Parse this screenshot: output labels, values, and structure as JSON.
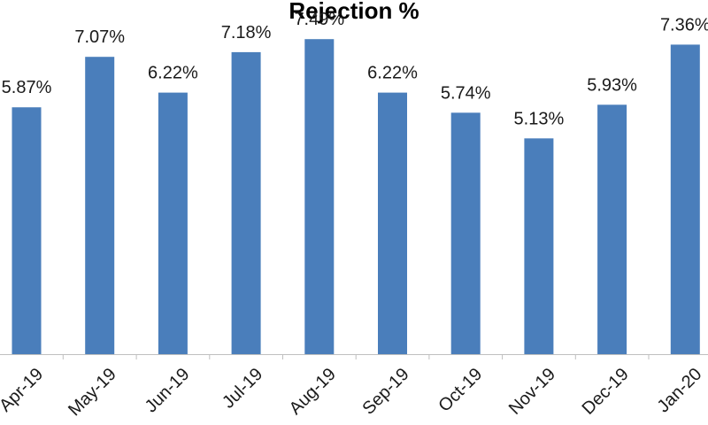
{
  "chart_data": {
    "type": "bar",
    "title": "Rejection %",
    "categories": [
      "Apr-19",
      "May-19",
      "Jun-19",
      "Jul-19",
      "Aug-19",
      "Sep-19",
      "Oct-19",
      "Nov-19",
      "Dec-19",
      "Jan-20"
    ],
    "values": [
      5.87,
      7.07,
      6.22,
      7.18,
      7.49,
      6.22,
      5.74,
      5.13,
      5.93,
      7.36
    ],
    "data_labels": [
      "5.87%",
      "7.07%",
      "6.22%",
      "7.18%",
      "7.49%",
      "6.22%",
      "5.74%",
      "5.13%",
      "5.93%",
      "7.36%"
    ],
    "ylim": [
      0,
      8
    ],
    "grid": false,
    "legend": "none",
    "bar_color": "#4a7ebb"
  }
}
